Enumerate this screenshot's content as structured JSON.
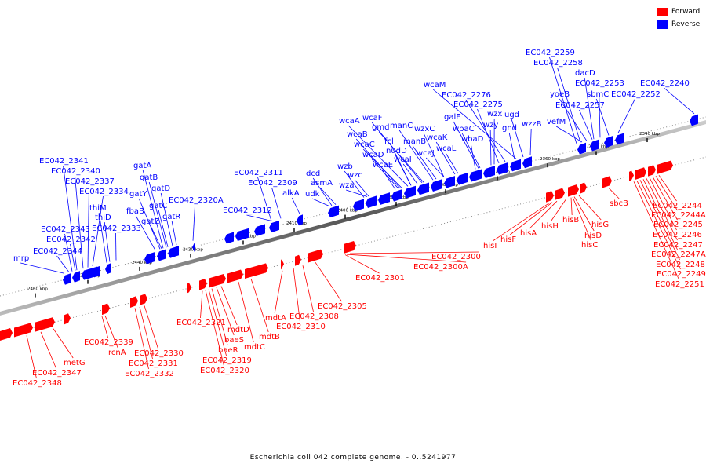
{
  "legend": {
    "forward_label": "Forward",
    "reverse_label": "Reverse",
    "forward_color": "#ff0000",
    "reverse_color": "#0000ff"
  },
  "caption": "Escherichia coli 042 complete genome. - 0..5241977",
  "scale": {
    "ticks": [
      "2340 kbp",
      "2350 kbp",
      "2360 kbp",
      "2370 kbp",
      "2380 kbp",
      "2390 kbp",
      "2400 kbp",
      "2410 kbp",
      "2420 kbp",
      "2430 kbp",
      "2440 kbp",
      "2450 kbp",
      "2460 kbp"
    ]
  },
  "reverse_labels": [
    "EC042_2259",
    "EC042_2258",
    "dacD",
    "EC042_2253",
    "yoeB",
    "sbmC",
    "EC042_2252",
    "EC042_2240",
    "EC042_2257",
    "vefM",
    "wzzB",
    "wcaM",
    "EC042_2276",
    "EC042_2275",
    "wzx",
    "ugd",
    "galF",
    "wzy",
    "gnd",
    "wbaC",
    "wbaD",
    "wcaA",
    "wcaF",
    "gmd",
    "manC",
    "wzxC",
    "wcaB",
    "fcl",
    "manB",
    "wcaK",
    "wcaC",
    "nudD",
    "wcaL",
    "wcaD",
    "wcaJ",
    "wcaI",
    "wcaE",
    "wzb",
    "wzc",
    "wza",
    "dcd",
    "asmA",
    "udk",
    "alkA",
    "EC042_2311",
    "EC042_2309",
    "EC042_2312",
    "gatA",
    "gatB",
    "gatD",
    "gatY",
    "fbaB",
    "gatC",
    "gatZ",
    "gatR",
    "EC042_2320A",
    "EC042_2341",
    "EC042_2340",
    "EC042_2337",
    "EC042_2334",
    "thiM",
    "thiD",
    "EC042_2333",
    "EC042_2343",
    "EC042_2342",
    "EC042_2344",
    "mrp"
  ],
  "forward_labels": [
    "sbcB",
    "hisG",
    "hisB",
    "hisH",
    "hisA",
    "hisF",
    "hisI",
    "hisD",
    "hisC",
    "EC042_2300",
    "EC042_2300A",
    "EC042_2301",
    "EC042_2305",
    "EC042_2308",
    "mdtA",
    "EC042_2310",
    "mdtB",
    "mdtC",
    "mdtD",
    "baeS",
    "baeR",
    "EC042_2321",
    "EC042_2319",
    "EC042_2320",
    "EC042_2330",
    "EC042_2331",
    "EC042_2332",
    "rcnA",
    "EC042_2339",
    "metG",
    "EC042_2347",
    "EC042_2348",
    "EC042_2244",
    "EC042_2244A",
    "EC042_2245",
    "EC042_2246",
    "EC042_2247",
    "EC042_2247A",
    "EC042_2248",
    "EC042_2249",
    "EC042_2251"
  ]
}
